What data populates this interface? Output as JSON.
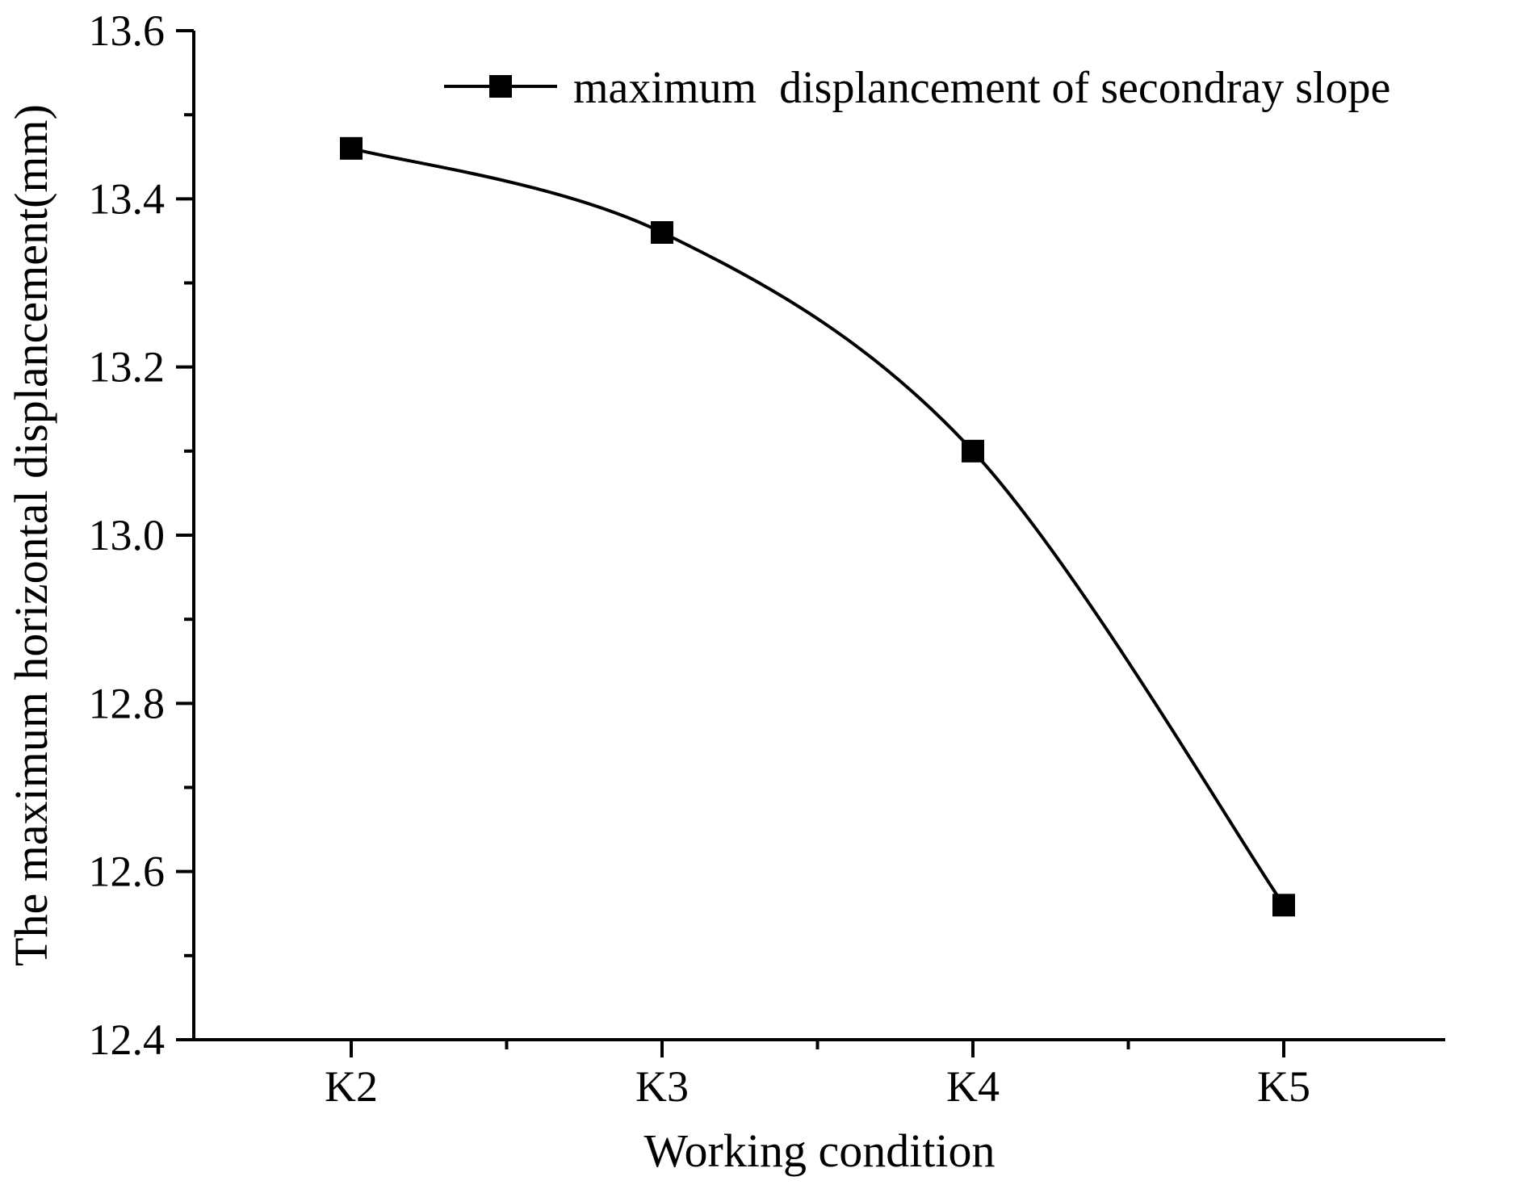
{
  "chart_data": {
    "type": "line",
    "title": "",
    "xlabel": "Working condition",
    "ylabel": "The maximum horizontal displancement(mm)",
    "categories": [
      "K2",
      "K3",
      "K4",
      "K5"
    ],
    "series": [
      {
        "name": "maximum  displancement of secondray slope",
        "values": [
          13.46,
          13.36,
          13.1,
          12.56
        ],
        "color": "#000000",
        "marker": "square",
        "smooth": true
      }
    ],
    "ylim": [
      12.4,
      13.6
    ],
    "y_ticks": [
      "12.4",
      "12.6",
      "12.8",
      "13.0",
      "13.2",
      "13.4",
      "13.6"
    ],
    "grid": false,
    "legend_position": "top-right"
  }
}
